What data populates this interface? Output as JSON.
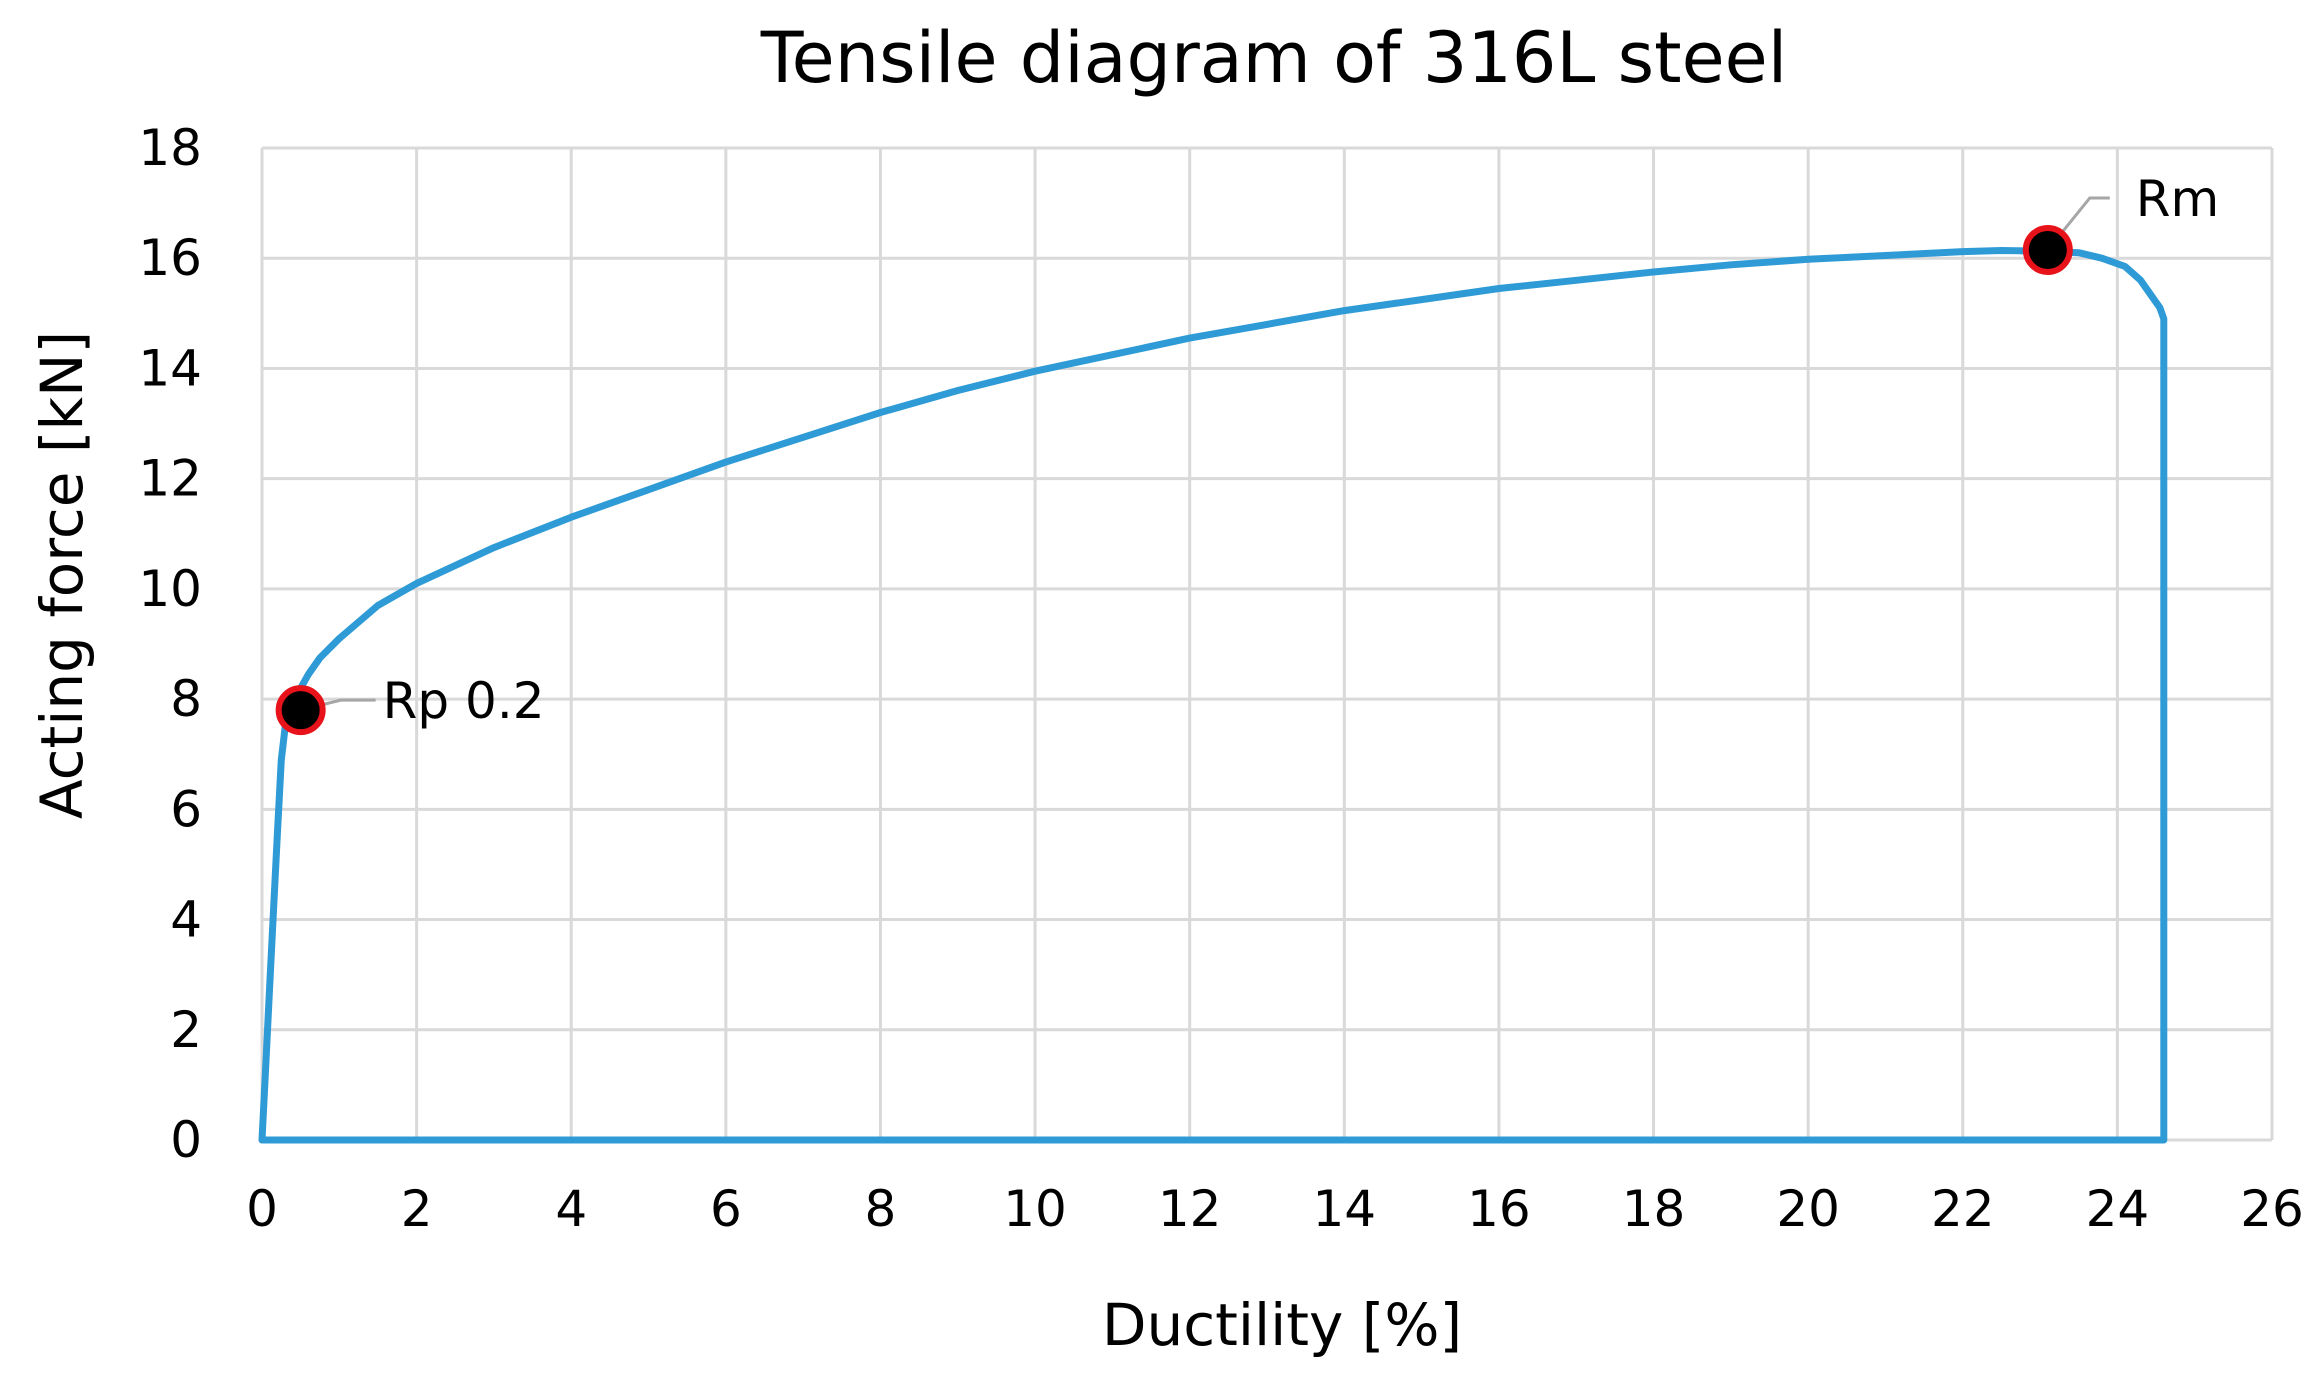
{
  "chart_data": {
    "type": "line",
    "title": "Tensile diagram of 316L steel",
    "xlabel": "Ductility [%]",
    "ylabel": "Acting force [kN]",
    "xlim": [
      0,
      26
    ],
    "ylim": [
      0,
      18
    ],
    "x_ticks": [
      0,
      2,
      4,
      6,
      8,
      10,
      12,
      14,
      16,
      18,
      20,
      22,
      24,
      26
    ],
    "y_ticks": [
      0,
      2,
      4,
      6,
      8,
      10,
      12,
      14,
      16,
      18
    ],
    "grid": true,
    "legend": "none",
    "series": [
      {
        "color": "#2e9bd6",
        "x": [
          0,
          0.05,
          0.1,
          0.15,
          0.2,
          0.25,
          0.3,
          0.35,
          0.4,
          0.45,
          0.5,
          0.6,
          0.75,
          1.0,
          1.25,
          1.5,
          2.0,
          3.0,
          4.0,
          5.0,
          6.0,
          7.0,
          8.0,
          9.0,
          10.0,
          11.0,
          12.0,
          13.0,
          14.0,
          15.0,
          16.0,
          17.0,
          18.0,
          19.0,
          20.0,
          21.0,
          22.0,
          22.5,
          23.0,
          23.5,
          23.8,
          24.1,
          24.3,
          24.45,
          24.55,
          24.6,
          24.6,
          24.6,
          22.0,
          18.0,
          14.0,
          10.0,
          6.0,
          2.0,
          0.0
        ],
        "y": [
          0,
          1.4,
          2.8,
          4.2,
          5.6,
          6.9,
          7.5,
          7.75,
          7.9,
          8.05,
          8.2,
          8.45,
          8.75,
          9.1,
          9.4,
          9.7,
          10.1,
          10.75,
          11.3,
          11.8,
          12.3,
          12.75,
          13.2,
          13.6,
          13.95,
          14.25,
          14.55,
          14.8,
          15.05,
          15.25,
          15.45,
          15.6,
          15.75,
          15.88,
          15.98,
          16.05,
          16.12,
          16.14,
          16.13,
          16.1,
          16.0,
          15.85,
          15.6,
          15.3,
          15.1,
          14.9,
          5.0,
          0.0,
          0.0,
          0.0,
          0.0,
          0.0,
          0.0,
          0.0,
          0.0
        ]
      }
    ],
    "points": [
      {
        "label": "Rp 0.2",
        "x": 0.5,
        "y": 7.8,
        "label_side": "right"
      },
      {
        "label": "Rm",
        "x": 23.1,
        "y": 16.15,
        "label_side": "above-right"
      }
    ],
    "marker_fill": "#000000",
    "marker_ring": "#e8121a",
    "grid_color": "#d9d9d9"
  }
}
